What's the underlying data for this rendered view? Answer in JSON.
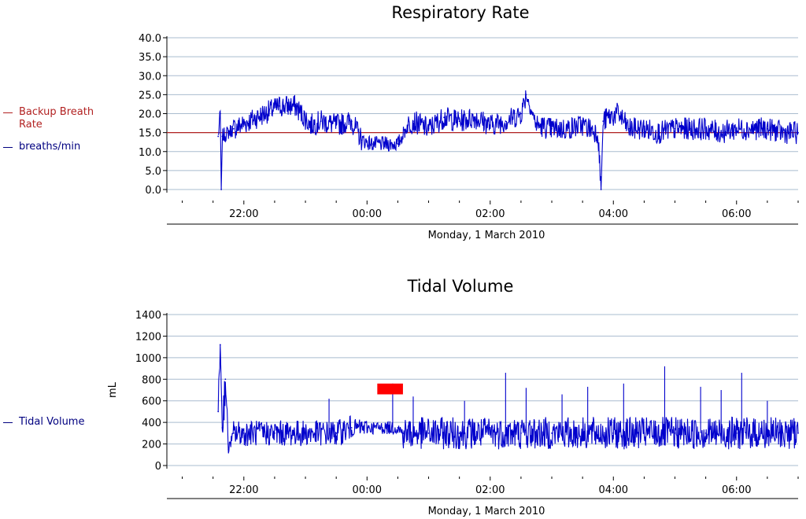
{
  "chart_data": [
    {
      "type": "line",
      "title": "Respiratory Rate",
      "xlabel": "Monday, 1 March 2010",
      "ylabel": "",
      "ylim": [
        0,
        40
      ],
      "y_ticks": [
        "40.0",
        "35.0",
        "30.0",
        "25.0",
        "20.0",
        "15.0",
        "10.0",
        "5.0",
        "0.0"
      ],
      "x_ticks": [
        "22:00",
        "00:00",
        "02:00",
        "04:00",
        "06:00"
      ],
      "x_range": [
        "20:45",
        "07:00"
      ],
      "legend_position": "left",
      "series": [
        {
          "name": "Backup Breath Rate",
          "color": "#b22222",
          "x": [
            "20:45",
            "07:00"
          ],
          "y": [
            15,
            15
          ]
        },
        {
          "name": "breaths/min",
          "color": "#0000cc",
          "x": [
            "21:35",
            "21:37",
            "21:38",
            "21:39",
            "21:50",
            "22:05",
            "22:20",
            "22:35",
            "22:50",
            "23:05",
            "23:15",
            "23:30",
            "23:45",
            "23:55",
            "00:05",
            "00:20",
            "00:30",
            "00:40",
            "00:45",
            "01:00",
            "01:15",
            "01:30",
            "01:45",
            "02:00",
            "02:15",
            "02:30",
            "02:35",
            "02:45",
            "03:00",
            "03:15",
            "03:30",
            "03:45",
            "03:48",
            "03:50",
            "03:55",
            "04:05",
            "04:15",
            "04:30",
            "04:45",
            "05:00",
            "05:15",
            "05:30",
            "05:45",
            "06:00",
            "06:15",
            "06:30",
            "06:45",
            "07:00"
          ],
          "y": [
            14,
            20,
            0,
            14,
            16,
            18,
            20,
            22,
            22,
            17,
            18,
            17,
            18,
            13,
            12,
            12,
            12,
            17,
            18,
            16,
            19,
            18,
            19,
            17,
            18,
            20,
            25,
            17,
            16,
            16,
            17,
            15,
            0,
            18,
            19,
            20,
            16,
            16,
            15,
            16,
            16,
            16,
            15,
            16,
            16,
            16,
            15,
            15
          ],
          "noise": [
            2,
            2,
            0,
            2,
            3,
            3,
            3,
            3,
            3,
            3,
            3,
            3,
            3,
            2,
            2,
            2,
            2,
            3,
            3,
            3,
            3,
            3,
            3,
            3,
            3,
            3,
            2,
            3,
            3,
            3,
            3,
            3,
            0,
            3,
            3,
            3,
            3,
            3,
            3,
            3,
            3,
            3,
            3,
            3,
            3,
            3,
            3,
            3
          ]
        }
      ]
    },
    {
      "type": "line",
      "title": "Tidal Volume",
      "xlabel": "Monday, 1 March 2010",
      "ylabel": "mL",
      "ylim": [
        0,
        1400
      ],
      "y_ticks": [
        "1400",
        "1200",
        "1000",
        "800",
        "600",
        "400",
        "200",
        "0"
      ],
      "x_ticks": [
        "22:00",
        "00:00",
        "02:00",
        "04:00",
        "06:00"
      ],
      "x_range": [
        "20:45",
        "07:00"
      ],
      "legend_position": "left",
      "annotation": {
        "type": "red-box",
        "x": [
          "00:10",
          "00:35"
        ],
        "y": [
          660,
          760
        ],
        "color": "#ff0000"
      },
      "series": [
        {
          "name": "Tidal Volume",
          "color": "#0000cc",
          "x": [
            "21:35",
            "21:37",
            "21:39",
            "21:42",
            "21:45",
            "21:50",
            "22:00",
            "22:30",
            "23:00",
            "23:30",
            "23:45",
            "00:00",
            "00:15",
            "00:30",
            "00:35",
            "00:45",
            "01:00",
            "01:30",
            "02:00",
            "02:30",
            "03:00",
            "03:30",
            "04:00",
            "04:30",
            "05:00",
            "05:30",
            "06:00",
            "06:30",
            "07:00"
          ],
          "y": [
            500,
            1120,
            350,
            800,
            150,
            300,
            300,
            300,
            300,
            300,
            350,
            350,
            350,
            350,
            300,
            300,
            300,
            300,
            300,
            300,
            300,
            300,
            300,
            300,
            300,
            300,
            300,
            300,
            300
          ],
          "noise": [
            150,
            0,
            200,
            100,
            50,
            120,
            120,
            120,
            120,
            120,
            80,
            60,
            60,
            60,
            150,
            150,
            150,
            150,
            150,
            150,
            150,
            150,
            150,
            150,
            150,
            150,
            150,
            150,
            150
          ],
          "spikes": [
            {
              "x": "23:23",
              "y": 620
            },
            {
              "x": "00:25",
              "y": 760
            },
            {
              "x": "00:45",
              "y": 640
            },
            {
              "x": "01:35",
              "y": 600
            },
            {
              "x": "02:15",
              "y": 860
            },
            {
              "x": "02:35",
              "y": 720
            },
            {
              "x": "03:10",
              "y": 660
            },
            {
              "x": "03:35",
              "y": 730
            },
            {
              "x": "04:10",
              "y": 760
            },
            {
              "x": "04:50",
              "y": 920
            },
            {
              "x": "05:25",
              "y": 730
            },
            {
              "x": "05:45",
              "y": 700
            },
            {
              "x": "06:05",
              "y": 860
            },
            {
              "x": "06:30",
              "y": 600
            }
          ]
        }
      ]
    }
  ]
}
